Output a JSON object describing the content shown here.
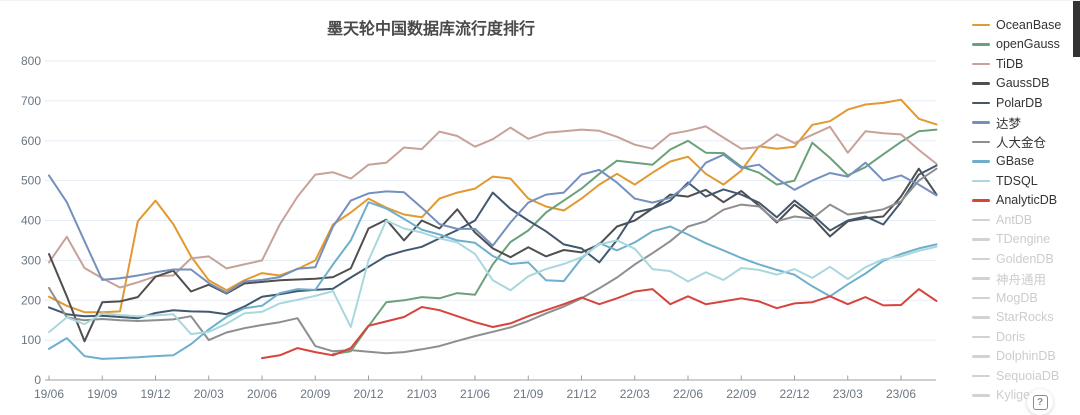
{
  "help": {
    "icon_glyph": "?"
  },
  "legend": {
    "disabled_color": "#d2d2d2",
    "disabled_text_color": "#cccccc"
  },
  "chart_data": {
    "type": "line",
    "title": "墨天轮中国数据库流行度排行",
    "xlabel": "",
    "ylabel": "",
    "ylim": [
      0,
      800
    ],
    "y_ticks": [
      0,
      100,
      200,
      300,
      400,
      500,
      600,
      700,
      800
    ],
    "grid": "horizontal",
    "legend_position": "right",
    "x_label_every": 3,
    "x": [
      "19/06",
      "19/07",
      "19/08",
      "19/09",
      "19/10",
      "19/11",
      "19/12",
      "20/01",
      "20/02",
      "20/03",
      "20/04",
      "20/05",
      "20/06",
      "20/07",
      "20/08",
      "20/09",
      "20/10",
      "20/11",
      "20/12",
      "21/01",
      "21/02",
      "21/03",
      "21/04",
      "21/05",
      "21/06",
      "21/07",
      "21/08",
      "21/09",
      "21/10",
      "21/11",
      "21/12",
      "22/01",
      "22/02",
      "22/03",
      "22/04",
      "22/05",
      "22/06",
      "22/07",
      "22/08",
      "22/09",
      "22/10",
      "22/11",
      "22/12",
      "23/01",
      "23/02",
      "23/03",
      "23/04",
      "23/05",
      "23/06",
      "23/07",
      "23/08"
    ],
    "series": [
      {
        "name": "OceanBase",
        "color": "#E2992F",
        "values": [
          209,
          186,
          170,
          170,
          172,
          398,
          450,
          391,
          310,
          250,
          225,
          250,
          268,
          262,
          278,
          300,
          390,
          420,
          455,
          432,
          415,
          408,
          455,
          470,
          480,
          510,
          505,
          455,
          435,
          425,
          455,
          490,
          517,
          490,
          520,
          548,
          560,
          517,
          490,
          525,
          586,
          580,
          585,
          640,
          649,
          678,
          691,
          695,
          703,
          655,
          641
        ]
      },
      {
        "name": "openGauss",
        "color": "#6CA079",
        "values": [
          null,
          null,
          null,
          null,
          null,
          null,
          null,
          null,
          null,
          null,
          null,
          null,
          null,
          null,
          null,
          null,
          65,
          72,
          135,
          195,
          200,
          208,
          205,
          218,
          214,
          290,
          346,
          375,
          420,
          450,
          480,
          517,
          550,
          545,
          540,
          578,
          600,
          570,
          569,
          535,
          520,
          490,
          500,
          595,
          557,
          513,
          534,
          566,
          597,
          624,
          628
        ]
      },
      {
        "name": "TiDB",
        "color": "#C7A299",
        "values": [
          295,
          359,
          281,
          255,
          232,
          245,
          260,
          262,
          305,
          310,
          280,
          290,
          300,
          390,
          460,
          515,
          521,
          505,
          540,
          545,
          583,
          579,
          623,
          612,
          585,
          604,
          633,
          605,
          620,
          624,
          628,
          625,
          610,
          590,
          580,
          617,
          625,
          636,
          608,
          580,
          584,
          616,
          594,
          615,
          635,
          570,
          624,
          619,
          616,
          577,
          542
        ]
      },
      {
        "name": "GaussDB",
        "color": "#4F4F4F",
        "values": [
          316,
          210,
          97,
          195,
          197,
          208,
          259,
          274,
          222,
          239,
          217,
          242,
          246,
          250,
          252,
          254,
          258,
          280,
          380,
          402,
          350,
          400,
          380,
          428,
          370,
          330,
          308,
          333,
          310,
          326,
          320,
          340,
          385,
          400,
          430,
          465,
          460,
          477,
          446,
          474,
          437,
          395,
          440,
          408,
          360,
          398,
          406,
          410,
          460,
          530,
          465
        ]
      },
      {
        "name": "PolarDB",
        "color": "#43586E",
        "values": [
          182,
          165,
          160,
          161,
          158,
          155,
          168,
          175,
          172,
          171,
          165,
          184,
          209,
          215,
          223,
          226,
          229,
          257,
          284,
          311,
          324,
          334,
          355,
          376,
          400,
          470,
          429,
          400,
          373,
          340,
          330,
          295,
          351,
          420,
          430,
          450,
          495,
          460,
          478,
          465,
          445,
          408,
          450,
          415,
          375,
          400,
          410,
          390,
          446,
          515,
          538
        ]
      },
      {
        "name": "达梦",
        "color": "#7590BE",
        "values": [
          513,
          446,
          348,
          251,
          255,
          262,
          270,
          277,
          277,
          243,
          219,
          247,
          251,
          258,
          279,
          283,
          385,
          450,
          468,
          473,
          471,
          432,
          391,
          379,
          379,
          337,
          395,
          445,
          465,
          470,
          515,
          527,
          495,
          455,
          445,
          457,
          490,
          545,
          565,
          532,
          540,
          505,
          477,
          500,
          519,
          510,
          545,
          500,
          513,
          490,
          463
        ]
      },
      {
        "name": "人大金仓",
        "color": "#8E8E8E",
        "values": [
          231,
          157,
          150,
          153,
          150,
          148,
          150,
          152,
          160,
          100,
          119,
          130,
          138,
          145,
          155,
          85,
          72,
          75,
          71,
          67,
          70,
          77,
          85,
          98,
          110,
          121,
          132,
          148,
          167,
          184,
          205,
          230,
          257,
          290,
          318,
          348,
          385,
          398,
          427,
          440,
          435,
          398,
          410,
          405,
          440,
          415,
          420,
          428,
          448,
          500,
          530
        ]
      },
      {
        "name": "GBase",
        "color": "#6FAFCB",
        "values": [
          78,
          105,
          60,
          53,
          55,
          57,
          60,
          62,
          90,
          127,
          158,
          180,
          186,
          218,
          228,
          226,
          290,
          350,
          446,
          430,
          404,
          377,
          365,
          350,
          344,
          311,
          291,
          295,
          250,
          248,
          305,
          343,
          325,
          345,
          373,
          385,
          365,
          343,
          325,
          306,
          290,
          276,
          264,
          235,
          210,
          240,
          267,
          299,
          316,
          330,
          340
        ]
      },
      {
        "name": "TDSQL",
        "color": "#A8D8DE",
        "values": [
          120,
          157,
          140,
          167,
          163,
          160,
          162,
          165,
          115,
          121,
          141,
          167,
          171,
          192,
          201,
          211,
          223,
          133,
          300,
          400,
          380,
          370,
          355,
          345,
          316,
          250,
          225,
          260,
          278,
          291,
          308,
          340,
          350,
          329,
          278,
          273,
          247,
          270,
          251,
          281,
          276,
          264,
          278,
          256,
          284,
          253,
          283,
          303,
          310,
          324,
          334
        ]
      },
      {
        "name": "AnalyticDB",
        "color": "#D6453C",
        "values": [
          null,
          null,
          null,
          null,
          null,
          null,
          null,
          null,
          null,
          null,
          null,
          null,
          55,
          62,
          80,
          70,
          62,
          80,
          136,
          147,
          158,
          183,
          175,
          160,
          145,
          133,
          142,
          160,
          175,
          190,
          207,
          190,
          205,
          222,
          228,
          190,
          210,
          190,
          197,
          205,
          197,
          180,
          192,
          195,
          210,
          190,
          208,
          187,
          188,
          228,
          198
        ]
      }
    ],
    "disabled_series": [
      {
        "name": "AntDB"
      },
      {
        "name": "TDengine"
      },
      {
        "name": "GoldenDB"
      },
      {
        "name": "神舟通用"
      },
      {
        "name": "MogDB"
      },
      {
        "name": "StarRocks"
      },
      {
        "name": "Doris"
      },
      {
        "name": "DolphinDB"
      },
      {
        "name": "SequoiaDB"
      },
      {
        "name": "Kyligence"
      }
    ]
  }
}
